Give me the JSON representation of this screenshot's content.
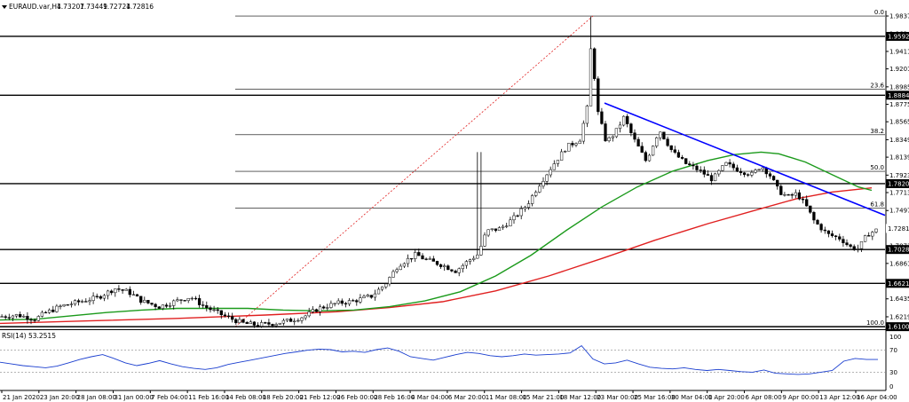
{
  "header": {
    "title": "EURAUD.var,H4",
    "ohlc": [
      "1.73207",
      "1.73449",
      "1.72724",
      "1.72816"
    ]
  },
  "rsi_label": "RSI(14) 53.2515",
  "chart_data": {
    "type": "candlestick",
    "symbol": "EURAUD.var",
    "timeframe": "H4",
    "ylim": [
      1.608,
      1.988
    ],
    "y_ticks": [
      "1.98370",
      "1.96240",
      "1.94110",
      "1.92010",
      "1.89850",
      "1.87750",
      "1.85650",
      "1.83490",
      "1.81390",
      "1.79230",
      "1.77130",
      "1.74970",
      "1.72870",
      "1.70710",
      "1.68610",
      "1.66450",
      "1.64350",
      "1.62190",
      "1.60090"
    ],
    "x_ticks": [
      "21 Jan 2020",
      "23 Jan 20:00",
      "28 Jan 08:00",
      "31 Jan 00:00",
      "7 Feb 04:00",
      "11 Feb 16:00",
      "14 Feb 08:00",
      "18 Feb 20:00",
      "21 Feb 12:00",
      "26 Feb 00:00",
      "28 Feb 16:00",
      "4 Mar 04:00",
      "6 Mar 20:00",
      "11 Mar 08:00",
      "15 Mar 21:00",
      "18 Mar 12:00",
      "23 Mar 00:00",
      "25 Mar 16:00",
      "30 Mar 04:00",
      "1 Apr 20:00",
      "6 Apr 08:00",
      "9 Apr 00:00",
      "13 Apr 12:00",
      "16 Apr 04:00"
    ],
    "price_levels": [
      {
        "value": 1.9592,
        "label": "1.95920"
      },
      {
        "value": 1.88842,
        "label": "1.88842"
      },
      {
        "value": 1.78205,
        "label": "1.78205"
      },
      {
        "value": 1.70282,
        "label": "1.70282"
      },
      {
        "value": 1.66213,
        "label": "1.66213"
      },
      {
        "value": 1.61001,
        "label": "1.61001"
      }
    ],
    "current_price": {
      "value": 1.72816,
      "label": "1.72816"
    },
    "fibonacci": {
      "high": 1.9837,
      "low": 1.61001,
      "levels": [
        {
          "label": "0.0",
          "value": 1.9837
        },
        {
          "label": "23.6",
          "value": 1.8955
        },
        {
          "label": "38.2",
          "value": 1.8409
        },
        {
          "label": "50.0",
          "value": 1.7969
        },
        {
          "label": "61.8",
          "value": 1.7528
        },
        {
          "label": "100.0",
          "value": 1.61001
        }
      ]
    },
    "trendline": {
      "from": [
        0.683,
        1.879
      ],
      "to": [
        1.0,
        1.744
      ],
      "color": "#0000ff"
    },
    "ma_fast": {
      "color": "#1b9a1b",
      "points": [
        [
          0,
          1.618
        ],
        [
          0.04,
          1.619
        ],
        [
          0.08,
          1.623
        ],
        [
          0.12,
          1.627
        ],
        [
          0.16,
          1.63
        ],
        [
          0.2,
          1.632
        ],
        [
          0.24,
          1.632
        ],
        [
          0.28,
          1.632
        ],
        [
          0.32,
          1.63
        ],
        [
          0.36,
          1.629
        ],
        [
          0.4,
          1.63
        ],
        [
          0.44,
          1.634
        ],
        [
          0.48,
          1.641
        ],
        [
          0.52,
          1.652
        ],
        [
          0.56,
          1.671
        ],
        [
          0.6,
          1.696
        ],
        [
          0.64,
          1.726
        ],
        [
          0.68,
          1.754
        ],
        [
          0.72,
          1.778
        ],
        [
          0.76,
          1.797
        ],
        [
          0.8,
          1.81
        ],
        [
          0.83,
          1.817
        ],
        [
          0.86,
          1.82
        ],
        [
          0.88,
          1.818
        ],
        [
          0.91,
          1.808
        ],
        [
          0.94,
          1.793
        ],
        [
          0.97,
          1.778
        ],
        [
          0.985,
          1.774
        ]
      ]
    },
    "ma_slow": {
      "color": "#e02020",
      "points": [
        [
          0,
          1.614
        ],
        [
          0.1,
          1.617
        ],
        [
          0.2,
          1.62
        ],
        [
          0.3,
          1.624
        ],
        [
          0.38,
          1.628
        ],
        [
          0.44,
          1.633
        ],
        [
          0.5,
          1.64
        ],
        [
          0.56,
          1.653
        ],
        [
          0.62,
          1.671
        ],
        [
          0.68,
          1.692
        ],
        [
          0.74,
          1.714
        ],
        [
          0.8,
          1.734
        ],
        [
          0.86,
          1.752
        ],
        [
          0.9,
          1.764
        ],
        [
          0.94,
          1.772
        ],
        [
          0.985,
          1.777
        ]
      ]
    },
    "price_path": [
      [
        0,
        1.622
      ],
      [
        0.02,
        1.624
      ],
      [
        0.04,
        1.619
      ],
      [
        0.05,
        1.626
      ],
      [
        0.07,
        1.635
      ],
      [
        0.09,
        1.64
      ],
      [
        0.11,
        1.645
      ],
      [
        0.13,
        1.656
      ],
      [
        0.145,
        1.652
      ],
      [
        0.16,
        1.641
      ],
      [
        0.18,
        1.634
      ],
      [
        0.2,
        1.641
      ],
      [
        0.215,
        1.646
      ],
      [
        0.23,
        1.635
      ],
      [
        0.245,
        1.627
      ],
      [
        0.26,
        1.62
      ],
      [
        0.275,
        1.614
      ],
      [
        0.29,
        1.612
      ],
      [
        0.31,
        1.614
      ],
      [
        0.33,
        1.618
      ],
      [
        0.345,
        1.623
      ],
      [
        0.36,
        1.632
      ],
      [
        0.38,
        1.638
      ],
      [
        0.4,
        1.641
      ],
      [
        0.42,
        1.647
      ],
      [
        0.435,
        1.661
      ],
      [
        0.45,
        1.684
      ],
      [
        0.47,
        1.697
      ],
      [
        0.48,
        1.691
      ],
      [
        0.5,
        1.684
      ],
      [
        0.515,
        1.677
      ],
      [
        0.53,
        1.69
      ],
      [
        0.54,
        1.697
      ],
      [
        0.55,
        1.725
      ],
      [
        0.565,
        1.728
      ],
      [
        0.58,
        1.74
      ],
      [
        0.595,
        1.756
      ],
      [
        0.61,
        1.782
      ],
      [
        0.625,
        1.805
      ],
      [
        0.64,
        1.826
      ],
      [
        0.655,
        1.835
      ],
      [
        0.665,
        1.88
      ],
      [
        0.668,
        1.955
      ],
      [
        0.675,
        1.87
      ],
      [
        0.685,
        1.832
      ],
      [
        0.695,
        1.843
      ],
      [
        0.705,
        1.862
      ],
      [
        0.715,
        1.838
      ],
      [
        0.73,
        1.809
      ],
      [
        0.745,
        1.847
      ],
      [
        0.76,
        1.82
      ],
      [
        0.775,
        1.806
      ],
      [
        0.79,
        1.798
      ],
      [
        0.805,
        1.787
      ],
      [
        0.82,
        1.806
      ],
      [
        0.835,
        1.798
      ],
      [
        0.85,
        1.793
      ],
      [
        0.86,
        1.804
      ],
      [
        0.87,
        1.792
      ],
      [
        0.88,
        1.773
      ],
      [
        0.89,
        1.766
      ],
      [
        0.9,
        1.77
      ],
      [
        0.91,
        1.757
      ],
      [
        0.92,
        1.737
      ],
      [
        0.935,
        1.721
      ],
      [
        0.95,
        1.716
      ],
      [
        0.96,
        1.706
      ],
      [
        0.97,
        1.704
      ],
      [
        0.98,
        1.721
      ],
      [
        0.99,
        1.726
      ],
      [
        1.0,
        1.728
      ]
    ],
    "rsi": {
      "name": "RSI(14)",
      "last": 53.2515,
      "levels": [
        30,
        70
      ],
      "scale": [
        "100",
        "70",
        "30",
        "0"
      ],
      "values": [
        48,
        45,
        42,
        40,
        38,
        41,
        47,
        53,
        58,
        62,
        55,
        47,
        42,
        46,
        51,
        45,
        40,
        37,
        35,
        38,
        44,
        48,
        52,
        56,
        60,
        64,
        67,
        70,
        72,
        71,
        67,
        68,
        66,
        71,
        74,
        68,
        58,
        55,
        52,
        57,
        62,
        66,
        64,
        60,
        58,
        60,
        63,
        61,
        62,
        63,
        65,
        78,
        54,
        45,
        47,
        52,
        45,
        39,
        37,
        36,
        38,
        35,
        33,
        35,
        33,
        31,
        30,
        34,
        28,
        27,
        26,
        27,
        30,
        33,
        50,
        55,
        53,
        53
      ]
    }
  }
}
